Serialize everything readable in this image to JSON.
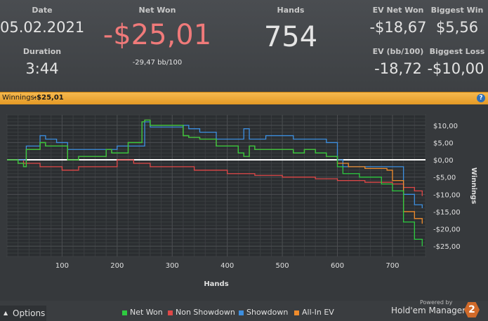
{
  "stats": {
    "date_label": "Date",
    "date_value": "05.02.2021",
    "duration_label": "Duration",
    "duration_value": "3:44",
    "netwon_label": "Net Won",
    "netwon_value": "-$25,01",
    "netwon_sub": "-29,47 bb/100",
    "hands_label": "Hands",
    "hands_value": "754",
    "evnet_label": "EV Net Won",
    "evnet_value": "-$18,67",
    "evbb_label": "EV (bb/100)",
    "evbb_value": "-18,72",
    "bigwin_label": "Biggest Win",
    "bigwin_value": "$5,56",
    "bigloss_label": "Biggest Loss",
    "bigloss_value": "-$10,00"
  },
  "bar": {
    "label": "Winnings:",
    "value": "-$25,01",
    "help": "?"
  },
  "footer": {
    "options_label": "Options",
    "options_icon": "caret-up-icon",
    "powered_by": "Powered by",
    "brand": "Hold'em Manager",
    "brand_badge": "2"
  },
  "colors": {
    "net_won": "#2ecc40",
    "non_showdown": "#e04848",
    "showdown": "#3d8fe0",
    "allin_ev": "#f08c2c",
    "netwon_text": "#f07a7a",
    "bar": "#f0a93a"
  },
  "chart_data": {
    "type": "line",
    "xlabel": "Hands",
    "ylabel": "Winnings",
    "xlim": [
      0,
      760
    ],
    "ylim": [
      -28,
      13
    ],
    "xticks": [
      100,
      200,
      300,
      400,
      500,
      600,
      700
    ],
    "xtick_labels": [
      "100",
      "200",
      "300",
      "400",
      "500",
      "600",
      "700"
    ],
    "yticks": [
      10,
      5,
      0,
      -5,
      -10,
      -15,
      -20,
      -25
    ],
    "ytick_labels": [
      "$10,00",
      "$5,00",
      "$0,00",
      "-$5,00",
      "-$10,00",
      "-$15,00",
      "-$20,00",
      "-$25,00"
    ],
    "grid": true,
    "legend_position": "bottom",
    "series": [
      {
        "name": "Net Won",
        "x": [
          0,
          20,
          30,
          35,
          60,
          70,
          110,
          130,
          150,
          180,
          190,
          220,
          245,
          250,
          260,
          270,
          320,
          330,
          350,
          380,
          420,
          430,
          440,
          450,
          520,
          540,
          560,
          580,
          600,
          610,
          640,
          680,
          700,
          720,
          740,
          754
        ],
        "values": [
          0,
          -1,
          -2,
          3,
          5,
          4,
          0,
          1,
          1,
          3,
          2,
          5,
          11,
          11.5,
          10,
          10,
          7,
          6.5,
          6,
          4,
          2,
          1,
          4,
          3,
          2,
          3,
          2,
          1,
          -2,
          -4,
          -5,
          -7,
          -9,
          -18,
          -23,
          -25
        ]
      },
      {
        "name": "Non Showdown",
        "x": [
          0,
          30,
          60,
          100,
          130,
          200,
          230,
          260,
          300,
          340,
          400,
          450,
          500,
          560,
          600,
          650,
          700,
          720,
          740,
          754
        ],
        "values": [
          0,
          -1,
          -2,
          -3,
          -2,
          0,
          -1,
          -2,
          -2,
          -3,
          -4,
          -4.5,
          -5,
          -5.5,
          -6,
          -6.5,
          -7,
          -8,
          -9,
          -10.5
        ]
      },
      {
        "name": "Showdown",
        "x": [
          0,
          30,
          35,
          60,
          70,
          90,
          110,
          160,
          200,
          250,
          260,
          320,
          330,
          350,
          380,
          430,
          440,
          470,
          520,
          580,
          600,
          610,
          640,
          700,
          720,
          740,
          754
        ],
        "values": [
          0,
          0,
          4,
          7,
          6,
          5,
          3,
          3,
          4,
          11,
          9.5,
          10,
          9,
          8,
          6,
          9,
          6,
          7,
          6,
          5,
          0,
          -2,
          -2,
          -2,
          -10,
          -13,
          -14
        ]
      },
      {
        "name": "All-In EV",
        "x": [
          0,
          20,
          30,
          35,
          60,
          70,
          110,
          130,
          150,
          180,
          190,
          220,
          245,
          250,
          260,
          270,
          320,
          330,
          350,
          380,
          420,
          430,
          440,
          450,
          520,
          540,
          560,
          580,
          600,
          620,
          650,
          690,
          700,
          720,
          740,
          754
        ],
        "values": [
          0,
          -1,
          -2,
          3,
          5,
          4,
          0,
          1,
          1,
          3,
          2,
          5,
          11,
          11.5,
          10,
          10,
          7,
          6.5,
          6,
          4,
          2,
          1,
          4,
          3,
          2,
          3,
          2,
          1,
          -1,
          -2,
          -2.5,
          -3,
          -6,
          -15,
          -17,
          -18.5
        ]
      }
    ]
  }
}
